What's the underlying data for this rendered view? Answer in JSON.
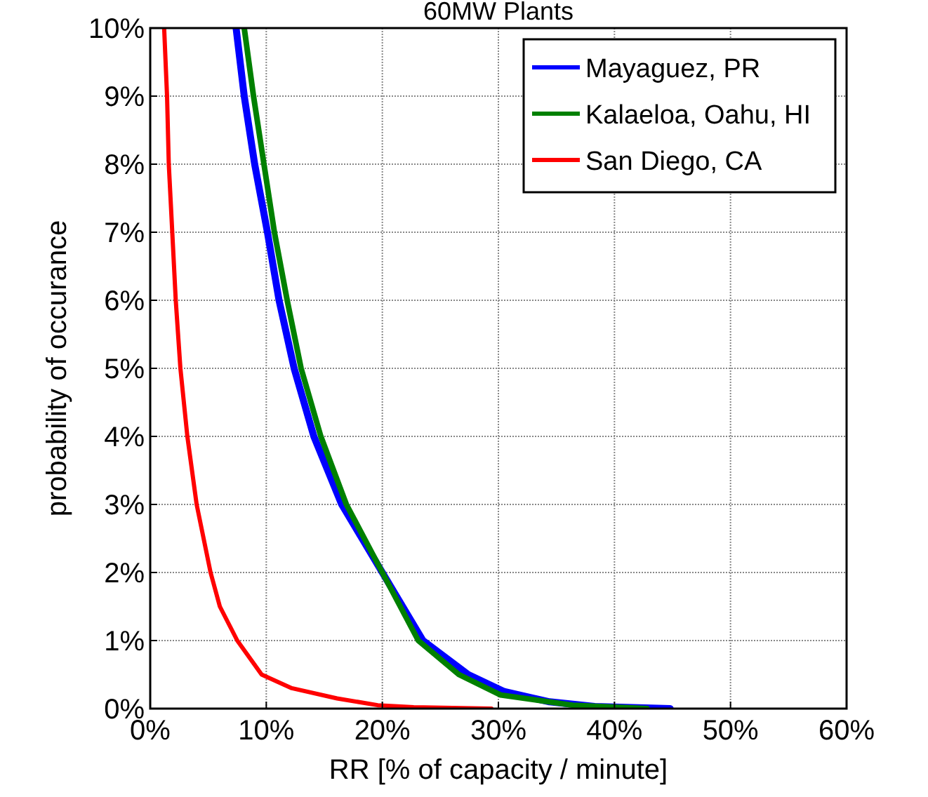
{
  "chart_data": {
    "type": "line",
    "title": "60MW Plants",
    "xlabel": "RR [% of capacity / minute]",
    "ylabel": "probability of occurance",
    "xlim": [
      0,
      60
    ],
    "ylim": [
      0,
      10
    ],
    "xticks": [
      {
        "value": 0,
        "label": "0%"
      },
      {
        "value": 10,
        "label": "10%"
      },
      {
        "value": 20,
        "label": "20%"
      },
      {
        "value": 30,
        "label": "30%"
      },
      {
        "value": 40,
        "label": "40%"
      },
      {
        "value": 50,
        "label": "50%"
      },
      {
        "value": 60,
        "label": "60%"
      }
    ],
    "yticks": [
      {
        "value": 0,
        "label": "0%"
      },
      {
        "value": 1,
        "label": "1%"
      },
      {
        "value": 2,
        "label": "2%"
      },
      {
        "value": 3,
        "label": "3%"
      },
      {
        "value": 4,
        "label": "4%"
      },
      {
        "value": 5,
        "label": "5%"
      },
      {
        "value": 6,
        "label": "6%"
      },
      {
        "value": 7,
        "label": "7%"
      },
      {
        "value": 8,
        "label": "8%"
      },
      {
        "value": 9,
        "label": "9%"
      },
      {
        "value": 10,
        "label": "10%"
      }
    ],
    "grid": true,
    "legend": "top right",
    "line_style": "solid",
    "marker": "none",
    "series": [
      {
        "name": "Mayaguez, PR",
        "color": "#0000ff",
        "x": [
          7.4,
          8.1,
          9.0,
          10.1,
          11.1,
          12.4,
          14.1,
          16.5,
          20,
          23.5,
          27.4,
          30.5,
          34.4,
          38.3,
          44.8
        ],
        "values": [
          10,
          9,
          8,
          7,
          6,
          5,
          4,
          3,
          2,
          1,
          0.5,
          0.25,
          0.1,
          0.03,
          0
        ]
      },
      {
        "name": "Kalaeloa, Oahu, HI",
        "color": "#008000",
        "x": [
          8.1,
          8.9,
          9.8,
          10.7,
          11.8,
          13,
          14.7,
          16.9,
          20,
          23.1,
          26.6,
          30.2,
          36.4,
          42.8
        ],
        "values": [
          10,
          9,
          8,
          7,
          6,
          5,
          4,
          3,
          2,
          1,
          0.5,
          0.2,
          0.05,
          0
        ]
      },
      {
        "name": "San Diego, CA",
        "color": "#ff0000",
        "x": [
          1.2,
          1.45,
          1.6,
          1.9,
          2.2,
          2.6,
          3.2,
          4.0,
          5.2,
          6.0,
          7.5,
          9.6,
          12.2,
          16.1,
          19.6,
          22.7,
          29.4
        ],
        "values": [
          10,
          9,
          8,
          7,
          6,
          5,
          4,
          3,
          2,
          1.5,
          1,
          0.5,
          0.3,
          0.15,
          0.05,
          0.02,
          0
        ]
      }
    ]
  }
}
